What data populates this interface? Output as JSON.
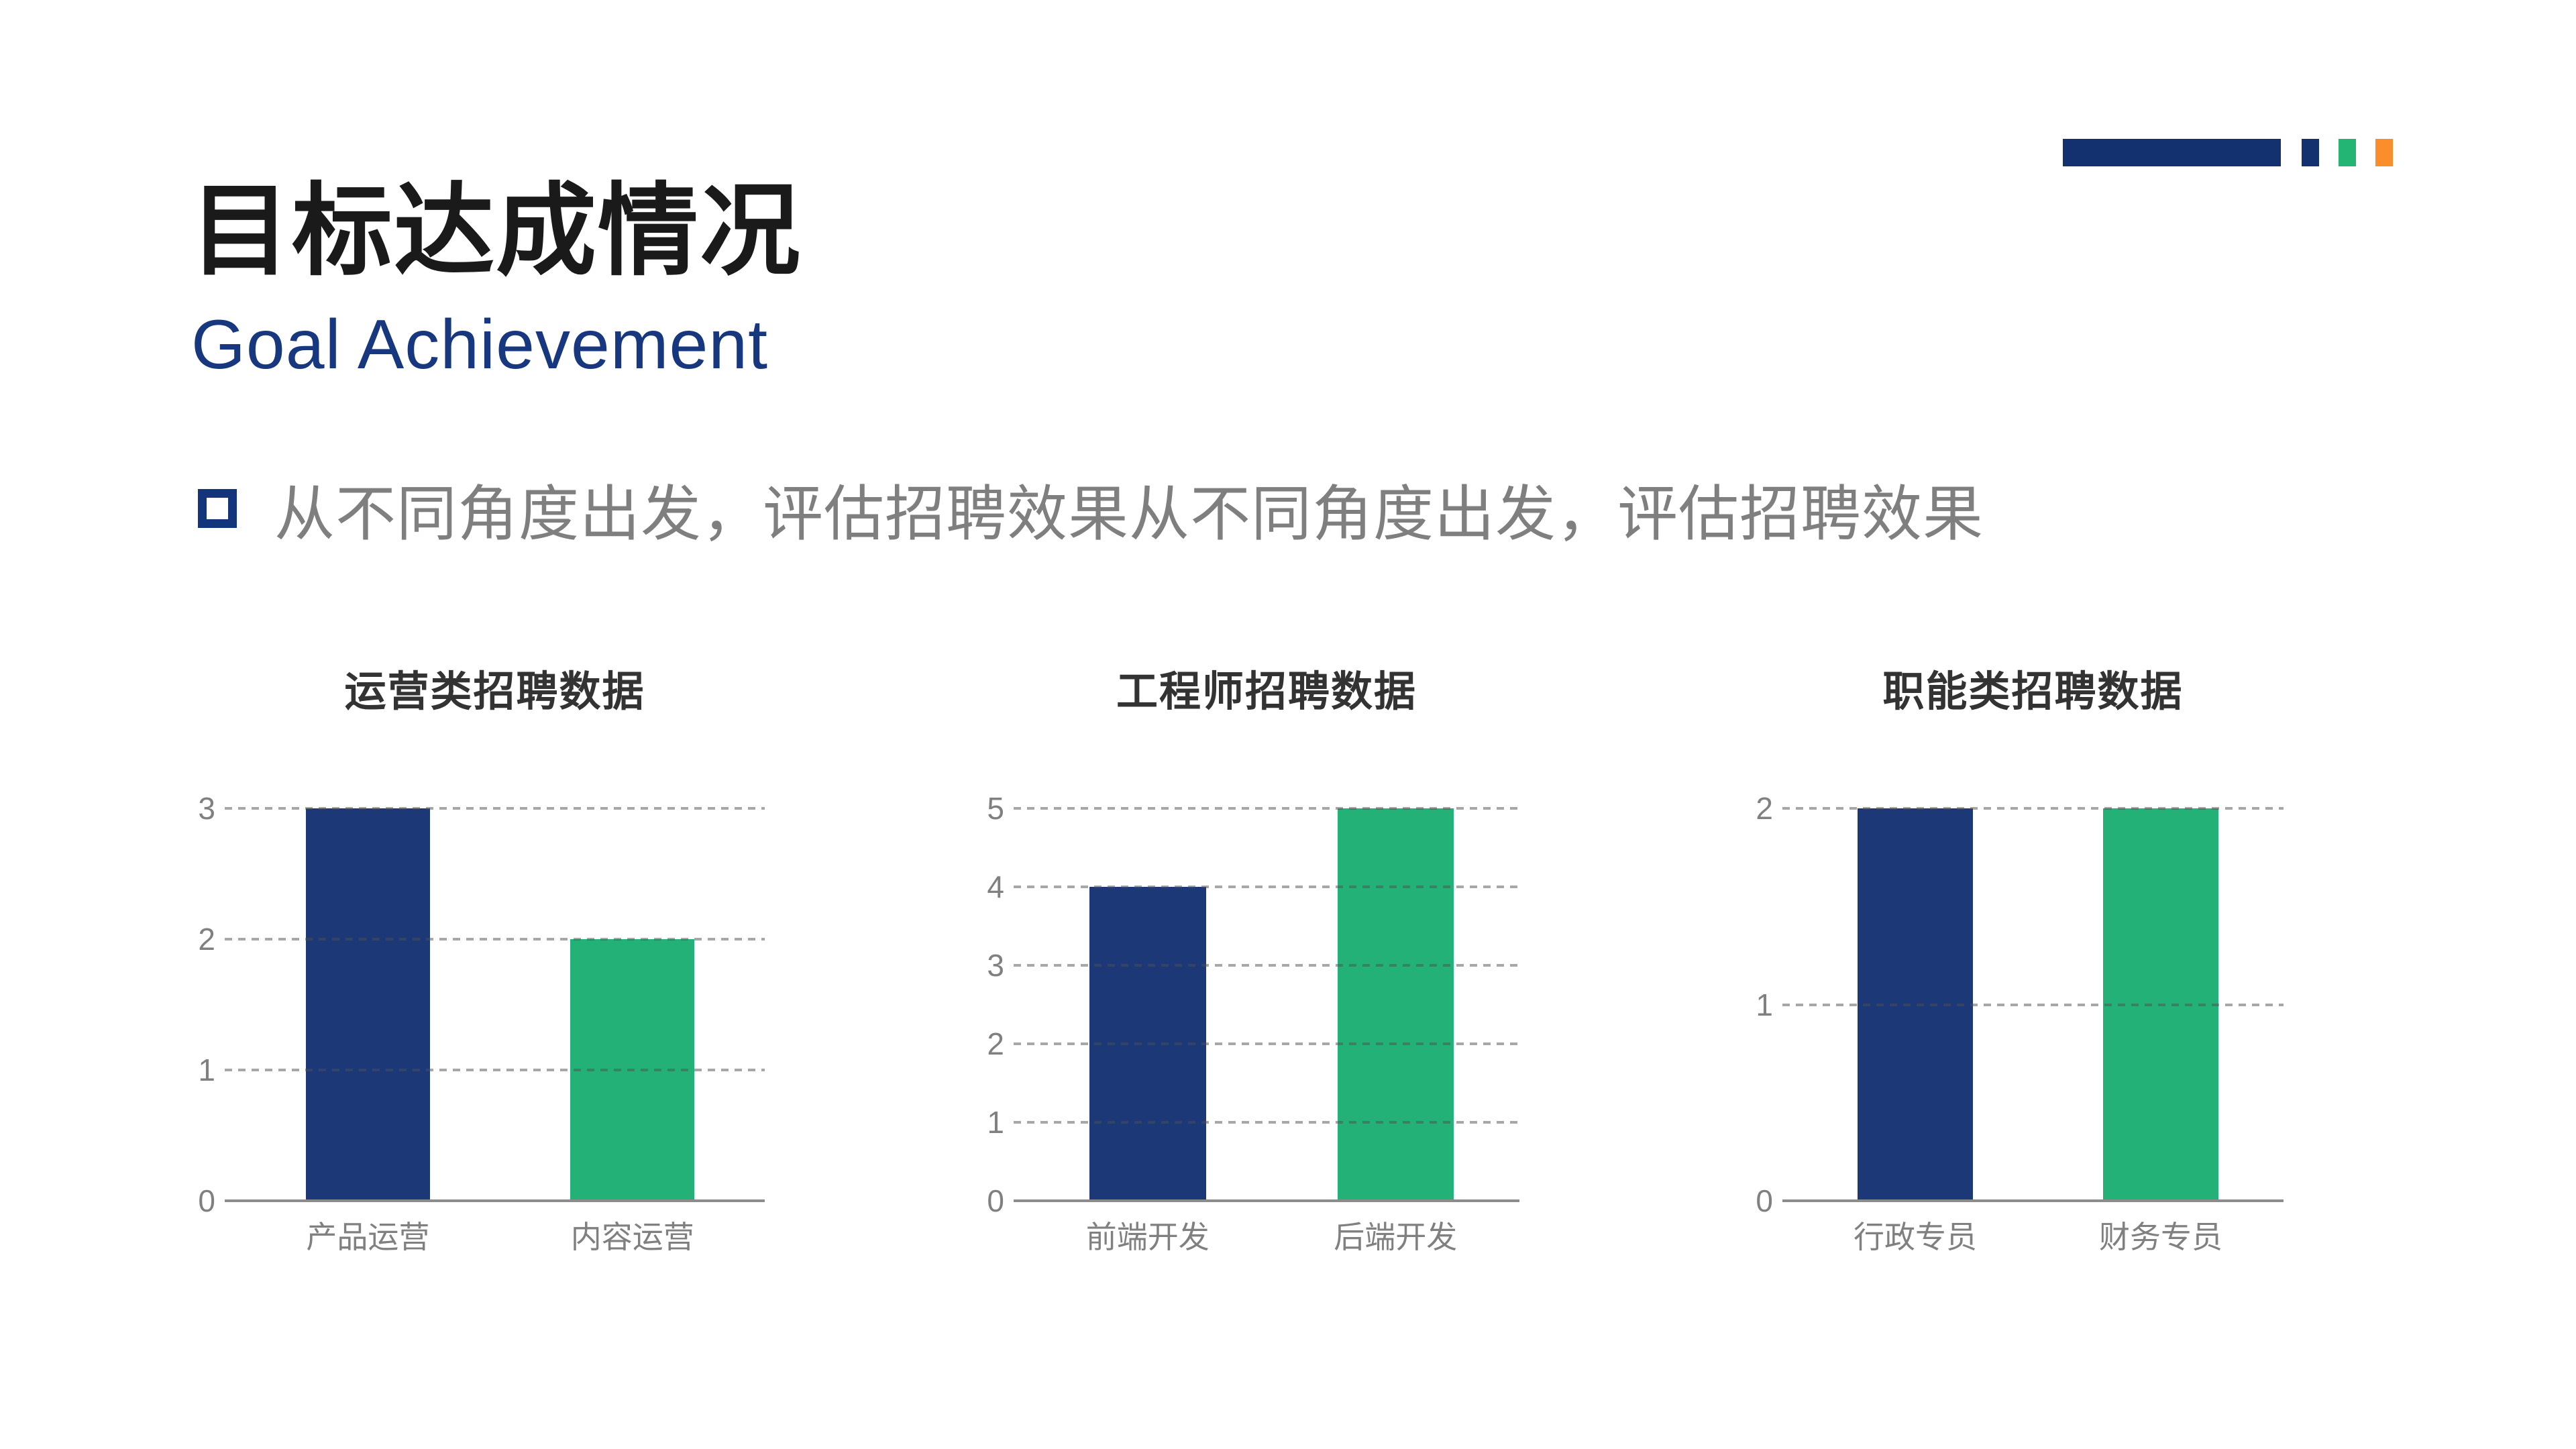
{
  "page": {
    "background": "#FFFFFF"
  },
  "header": {
    "title": "目标达成情况",
    "title_color": "#1A1A1A",
    "subtitle": "Goal Achievement",
    "subtitle_color": "#17377E"
  },
  "decor": {
    "bar_color": "#13316F",
    "square_colors": [
      "#13316F",
      "#22B573",
      "#F98E2B"
    ]
  },
  "bullet": {
    "marker": "hollow-square",
    "marker_color": "#12357C",
    "text": "从不同角度出发，评估招聘效果从不同角度出发，评估招聘效果",
    "text_color": "#7F7F7F"
  },
  "chart_style": {
    "bar_blue": "#1C3876",
    "bar_green": "#24B178",
    "grid_color": "#A6A6A6",
    "axis_color": "#8C8C8C",
    "tick_label_color": "#808080",
    "chart_title_color": "#333333"
  },
  "chart_data": [
    {
      "type": "bar",
      "title": "运营类招聘数据",
      "categories": [
        "产品运营",
        "内容运营"
      ],
      "values": [
        3,
        2
      ],
      "bar_colors": [
        "#1C3876",
        "#24B178"
      ],
      "ylim": [
        0,
        3
      ],
      "yticks": [
        0,
        1,
        2,
        3
      ],
      "grid": "horizontal-dashed",
      "legend": "none"
    },
    {
      "type": "bar",
      "title": "工程师招聘数据",
      "categories": [
        "前端开发",
        "后端开发"
      ],
      "values": [
        4,
        5
      ],
      "bar_colors": [
        "#1C3876",
        "#24B178"
      ],
      "ylim": [
        0,
        5
      ],
      "yticks": [
        0,
        1,
        2,
        3,
        4,
        5
      ],
      "grid": "horizontal-dashed",
      "legend": "none"
    },
    {
      "type": "bar",
      "title": "职能类招聘数据",
      "categories": [
        "行政专员",
        "财务专员"
      ],
      "values": [
        2,
        2
      ],
      "bar_colors": [
        "#1C3876",
        "#24B178"
      ],
      "ylim": [
        0,
        2
      ],
      "yticks": [
        0,
        1,
        2
      ],
      "grid": "horizontal-dashed",
      "legend": "none"
    }
  ]
}
